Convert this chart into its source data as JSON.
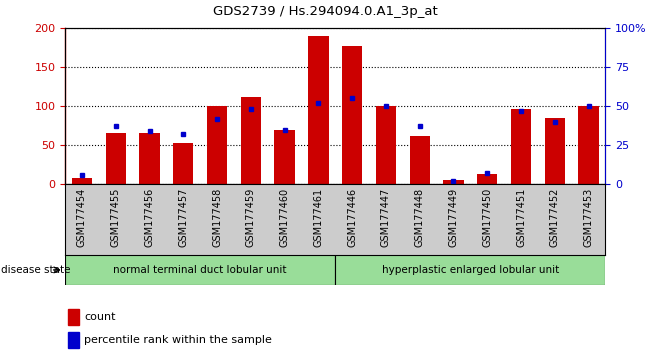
{
  "title": "GDS2739 / Hs.294094.0.A1_3p_at",
  "samples": [
    "GSM177454",
    "GSM177455",
    "GSM177456",
    "GSM177457",
    "GSM177458",
    "GSM177459",
    "GSM177460",
    "GSM177461",
    "GSM177446",
    "GSM177447",
    "GSM177448",
    "GSM177449",
    "GSM177450",
    "GSM177451",
    "GSM177452",
    "GSM177453"
  ],
  "counts": [
    8,
    65,
    66,
    53,
    100,
    112,
    70,
    190,
    177,
    100,
    62,
    5,
    13,
    96,
    85,
    100
  ],
  "percentiles": [
    6,
    37,
    34,
    32,
    42,
    48,
    35,
    52,
    55,
    50,
    37,
    2,
    7,
    47,
    40,
    50
  ],
  "group1_label": "normal terminal duct lobular unit",
  "group2_label": "hyperplastic enlarged lobular unit",
  "group1_count": 8,
  "group2_count": 8,
  "disease_state_label": "disease state",
  "legend_count_label": "count",
  "legend_pct_label": "percentile rank within the sample",
  "left_axis_color": "#cc0000",
  "right_axis_color": "#0000cc",
  "bar_color": "#cc0000",
  "dot_color": "#0000cc",
  "group1_bg": "#99dd99",
  "group2_bg": "#99dd99",
  "ylim_left": [
    0,
    200
  ],
  "ylim_right": [
    0,
    100
  ],
  "yticks_left": [
    0,
    50,
    100,
    150,
    200
  ],
  "yticks_right": [
    0,
    25,
    50,
    75,
    100
  ],
  "ytick_labels_right": [
    "0",
    "25",
    "50",
    "75",
    "100%"
  ],
  "xtick_bg": "#cccccc"
}
